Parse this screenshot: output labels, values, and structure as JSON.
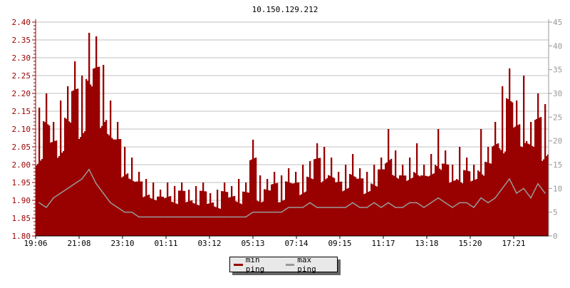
{
  "chart_data": {
    "type": "bar",
    "title": "10.150.129.212",
    "x_tick_labels": [
      "19:06",
      "21:08",
      "23:10",
      "01:11",
      "03:12",
      "05:13",
      "07:14",
      "09:15",
      "11:17",
      "13:18",
      "15:20",
      "17:21"
    ],
    "x": [
      "19:06",
      "19:26",
      "19:46",
      "20:06",
      "20:26",
      "20:46",
      "21:06",
      "21:26",
      "21:46",
      "22:06",
      "22:26",
      "22:46",
      "23:06",
      "23:26",
      "23:46",
      "00:06",
      "00:26",
      "00:46",
      "01:06",
      "01:26",
      "01:46",
      "02:06",
      "02:26",
      "02:46",
      "03:06",
      "03:26",
      "03:46",
      "04:06",
      "04:26",
      "04:46",
      "05:06",
      "05:26",
      "05:46",
      "06:06",
      "06:26",
      "06:46",
      "07:06",
      "07:26",
      "07:46",
      "08:06",
      "08:26",
      "08:46",
      "09:06",
      "09:26",
      "09:46",
      "10:06",
      "10:26",
      "10:46",
      "11:06",
      "11:26",
      "11:46",
      "12:06",
      "12:26",
      "12:46",
      "13:06",
      "13:26",
      "13:46",
      "14:06",
      "14:26",
      "14:46",
      "15:06",
      "15:26",
      "15:46",
      "16:06",
      "16:26",
      "16:46",
      "17:06",
      "17:26",
      "17:46",
      "18:06",
      "18:26",
      "18:46"
    ],
    "left_axis": {
      "ylim": [
        1.8,
        2.4
      ],
      "ticks": [
        "1.80",
        "1.85",
        "1.90",
        "1.95",
        "2.00",
        "2.05",
        "2.10",
        "2.15",
        "2.20",
        "2.25",
        "2.30",
        "2.35",
        "2.40"
      ],
      "color": "#990000"
    },
    "right_axis": {
      "ylim": [
        0,
        45
      ],
      "ticks": [
        "0",
        "5",
        "10",
        "15",
        "20",
        "25",
        "30",
        "35",
        "40",
        "45"
      ],
      "color": "#999999"
    },
    "grid": true,
    "legend_placement": "bottom-center",
    "series": [
      {
        "name": "min ping",
        "axis": "left",
        "style": "bar",
        "color": "#990000",
        "values": [
          2.16,
          2.2,
          2.12,
          2.18,
          2.22,
          2.29,
          2.25,
          2.37,
          2.36,
          2.28,
          2.18,
          2.12,
          2.05,
          2.02,
          1.98,
          1.96,
          1.95,
          1.93,
          1.95,
          1.94,
          1.95,
          1.93,
          1.94,
          1.95,
          1.92,
          1.93,
          1.95,
          1.94,
          1.96,
          1.95,
          2.07,
          1.97,
          1.96,
          1.98,
          1.97,
          1.99,
          1.98,
          2.0,
          2.01,
          2.06,
          2.05,
          2.02,
          1.98,
          2.0,
          2.03,
          1.99,
          1.98,
          2.0,
          2.02,
          2.1,
          2.04,
          2.0,
          2.02,
          2.06,
          2.0,
          2.03,
          2.1,
          2.04,
          2.0,
          2.05,
          2.02,
          2.0,
          2.1,
          2.05,
          2.12,
          2.22,
          2.27,
          2.18,
          2.25,
          2.12,
          2.2,
          2.17
        ]
      },
      {
        "name": "max ping",
        "axis": "right",
        "style": "line",
        "color": "#999999",
        "values": [
          7,
          6,
          8,
          9,
          10,
          11,
          12,
          14,
          11,
          9,
          7,
          6,
          5,
          5,
          4,
          4,
          4,
          4,
          4,
          4,
          4,
          4,
          4,
          4,
          4,
          4,
          4,
          4,
          4,
          4,
          5,
          5,
          5,
          5,
          5,
          6,
          6,
          6,
          7,
          6,
          6,
          6,
          6,
          6,
          7,
          6,
          6,
          7,
          6,
          7,
          6,
          6,
          7,
          7,
          6,
          7,
          8,
          7,
          6,
          7,
          7,
          6,
          8,
          7,
          8,
          10,
          12,
          9,
          10,
          8,
          11,
          9
        ]
      }
    ]
  }
}
